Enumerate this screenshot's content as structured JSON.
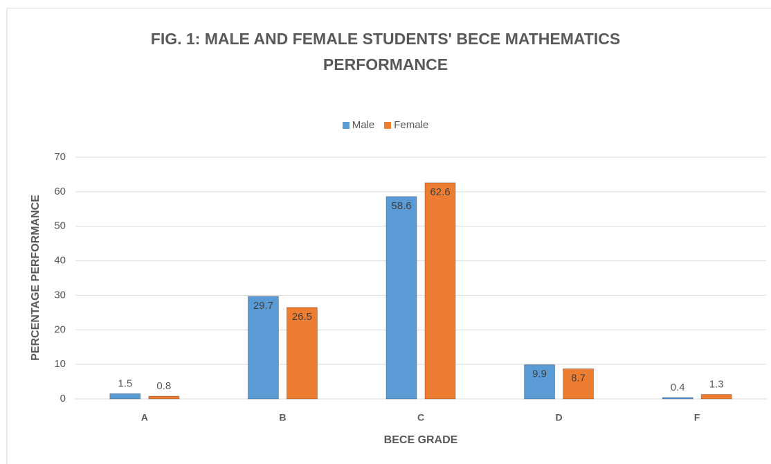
{
  "chart_data": {
    "type": "bar",
    "title": "FIG. 1: MALE AND FEMALE STUDENTS' BECE MATHEMATICS PERFORMANCE",
    "x_label": "BECE GRADE",
    "y_label": "PERCENTAGE PERFORMANCE",
    "categories": [
      "A",
      "B",
      "C",
      "D",
      "F"
    ],
    "series": [
      {
        "name": "Male",
        "color": "#5b9bd5",
        "values": [
          1.5,
          29.7,
          58.6,
          9.9,
          0.4
        ]
      },
      {
        "name": "Female",
        "color": "#ed7d31",
        "values": [
          0.8,
          26.5,
          62.6,
          8.7,
          1.3
        ]
      }
    ],
    "ylim": [
      0,
      70
    ],
    "yticks": [
      0,
      10,
      20,
      30,
      40,
      50,
      60,
      70
    ],
    "grid": true,
    "legend": "top"
  }
}
